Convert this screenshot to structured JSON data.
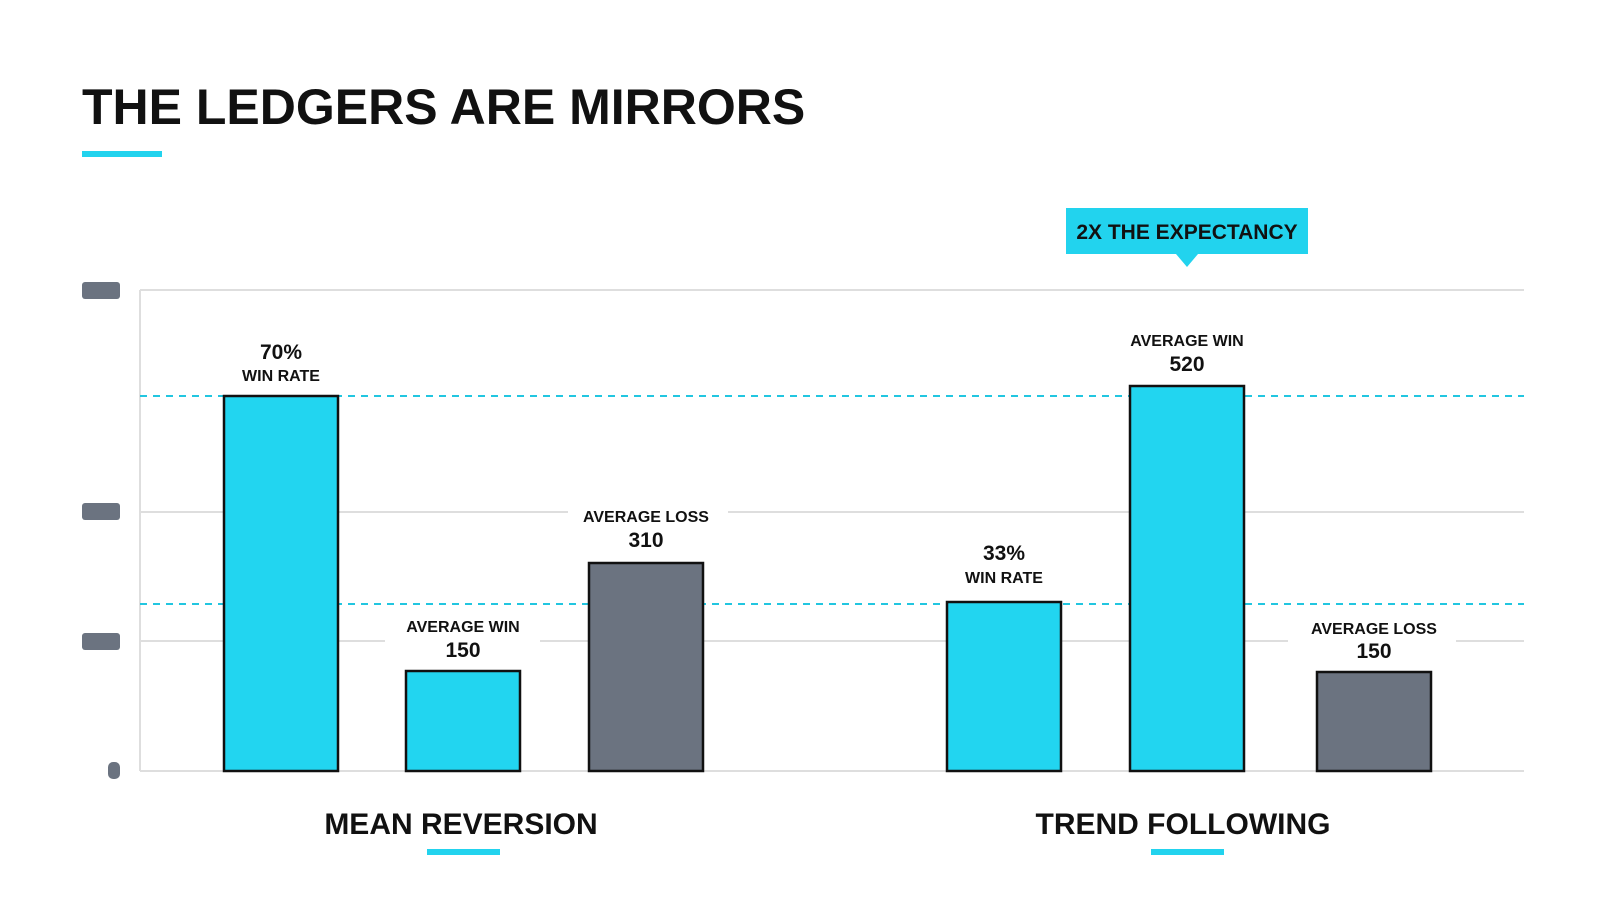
{
  "title": "THE LEDGERS ARE MIRRORS",
  "colors": {
    "accent": "#22d3ee",
    "bar_cyan": "#22d5f0",
    "bar_gray": "#6b7380",
    "text": "#111111",
    "grid": "#dddddd",
    "tick_block": "#6b7380"
  },
  "callout": {
    "text": "2X THE EXPECTANCY",
    "color": "#22d3ee"
  },
  "chart_data": {
    "type": "bar",
    "title": "THE LEDGERS ARE MIRRORS",
    "groups": [
      {
        "name": "MEAN REVERSION",
        "bars": [
          {
            "label": "WIN RATE",
            "value_text": "70%",
            "color": "cyan"
          },
          {
            "label": "AVERAGE WIN",
            "value_text": "150",
            "value": 150,
            "color": "cyan"
          },
          {
            "label": "AVERAGE LOSS",
            "value_text": "310",
            "value": 310,
            "color": "gray"
          }
        ]
      },
      {
        "name": "TREND FOLLOWING",
        "bars": [
          {
            "label": "WIN RATE",
            "value_text": "33%",
            "color": "cyan"
          },
          {
            "label": "AVERAGE WIN",
            "value_text": "520",
            "value": 520,
            "color": "cyan"
          },
          {
            "label": "AVERAGE LOSS",
            "value_text": "150",
            "value": 150,
            "color": "gray"
          }
        ]
      }
    ],
    "y_tick_labels": [
      "",
      "",
      "",
      "0"
    ],
    "grid": true,
    "reference_lines": "dashed cyan, two levels"
  }
}
